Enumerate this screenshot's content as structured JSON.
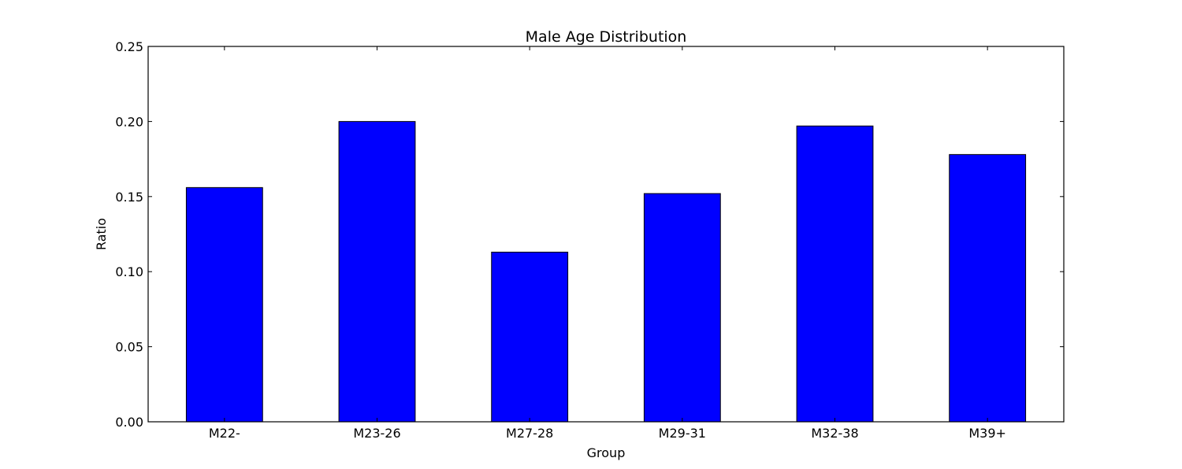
{
  "chart_data": {
    "type": "bar",
    "title": "Male Age Distribution",
    "xlabel": "Group",
    "ylabel": "Ratio",
    "categories": [
      "M22-",
      "M23-26",
      "M27-28",
      "M29-31",
      "M32-38",
      "M39+"
    ],
    "values": [
      0.156,
      0.2,
      0.113,
      0.152,
      0.197,
      0.178
    ],
    "ylim": [
      0,
      0.25
    ],
    "yticks": [
      "0.00",
      "0.05",
      "0.10",
      "0.15",
      "0.20",
      "0.25"
    ],
    "bar_color": "#0000ff",
    "grid": false,
    "legend": "none"
  }
}
